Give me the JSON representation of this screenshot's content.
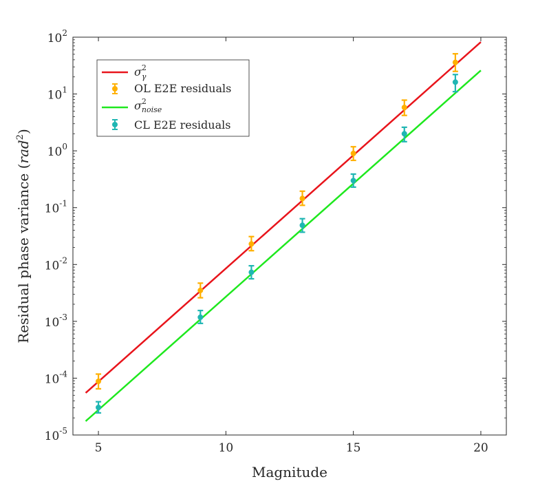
{
  "chart_data": {
    "type": "scatter",
    "title": "",
    "xlabel": "Magnitude",
    "ylabel": {
      "prefix": "Residual phase variance (",
      "unit": "rad",
      "unit_exp": "2",
      "suffix": ")"
    },
    "xscale": "linear",
    "yscale": "log",
    "xlim": [
      4,
      21
    ],
    "ylim": [
      1e-05,
      100
    ],
    "xticks": [
      5,
      10,
      15,
      20
    ],
    "xtick_labels": [
      "5",
      "10",
      "15",
      "20"
    ],
    "yticks": [
      1e-05,
      0.0001,
      0.001,
      0.01,
      0.1,
      1,
      10,
      100
    ],
    "ytick_labels": [
      {
        "base": "10",
        "exp": "-5"
      },
      {
        "base": "10",
        "exp": "-4"
      },
      {
        "base": "10",
        "exp": "-3"
      },
      {
        "base": "10",
        "exp": "-2"
      },
      {
        "base": "10",
        "exp": "-1"
      },
      {
        "base": "10",
        "exp": "0"
      },
      {
        "base": "10",
        "exp": "1"
      },
      {
        "base": "10",
        "exp": "2"
      }
    ],
    "grid": false,
    "legend_position": "top-left",
    "series": [
      {
        "name": "sigma_gamma_sq",
        "kind": "line",
        "color": "#e8141b",
        "legend": {
          "symbol": "σ",
          "sup": "2",
          "sub": "γ"
        },
        "x": [
          4.5,
          20
        ],
        "y": [
          5.5e-05,
          82
        ]
      },
      {
        "name": "ol_e2e_residuals",
        "kind": "errorbar",
        "color": "#ffb000",
        "legend": {
          "text": "OL E2E residuals"
        },
        "x": [
          5,
          9,
          11,
          13,
          15,
          17,
          19
        ],
        "y": [
          8.8e-05,
          0.0035,
          0.023,
          0.145,
          0.9,
          5.8,
          36
        ],
        "y_low": [
          6.5e-05,
          0.0026,
          0.0175,
          0.11,
          0.68,
          4.2,
          25
        ],
        "y_high": [
          0.000118,
          0.0047,
          0.031,
          0.195,
          1.18,
          7.8,
          51
        ]
      },
      {
        "name": "sigma_noise_sq",
        "kind": "line",
        "color": "#1ee81e",
        "legend": {
          "symbol": "σ",
          "sup": "2",
          "sub": "noise"
        },
        "x": [
          4.5,
          20
        ],
        "y": [
          1.75e-05,
          26
        ]
      },
      {
        "name": "cl_e2e_residuals",
        "kind": "errorbar",
        "color": "#1fb6b3",
        "legend": {
          "text": "CL E2E residuals"
        },
        "x": [
          5,
          9,
          11,
          13,
          15,
          17,
          19
        ],
        "y": [
          3.05e-05,
          0.00118,
          0.0073,
          0.049,
          0.3,
          2.0,
          16.2
        ],
        "y_low": [
          2.45e-05,
          0.00092,
          0.0056,
          0.037,
          0.23,
          1.45,
          11
        ],
        "y_high": [
          3.85e-05,
          0.00155,
          0.0095,
          0.064,
          0.39,
          2.6,
          22
        ]
      }
    ]
  }
}
